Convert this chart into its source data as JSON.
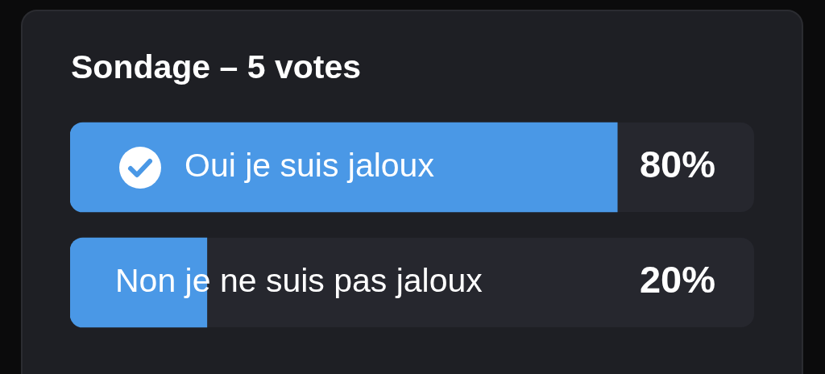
{
  "chart_data": {
    "type": "bar",
    "orientation": "horizontal",
    "title": "Sondage – 5 votes",
    "categories": [
      "Oui je suis jaloux",
      "Non je ne suis pas jaloux"
    ],
    "values": [
      80,
      20
    ],
    "color": "#4a98e6",
    "value_labels": [
      "80%",
      "20%"
    ],
    "xlim": [
      0,
      100
    ],
    "tick_labels": false
  }
}
